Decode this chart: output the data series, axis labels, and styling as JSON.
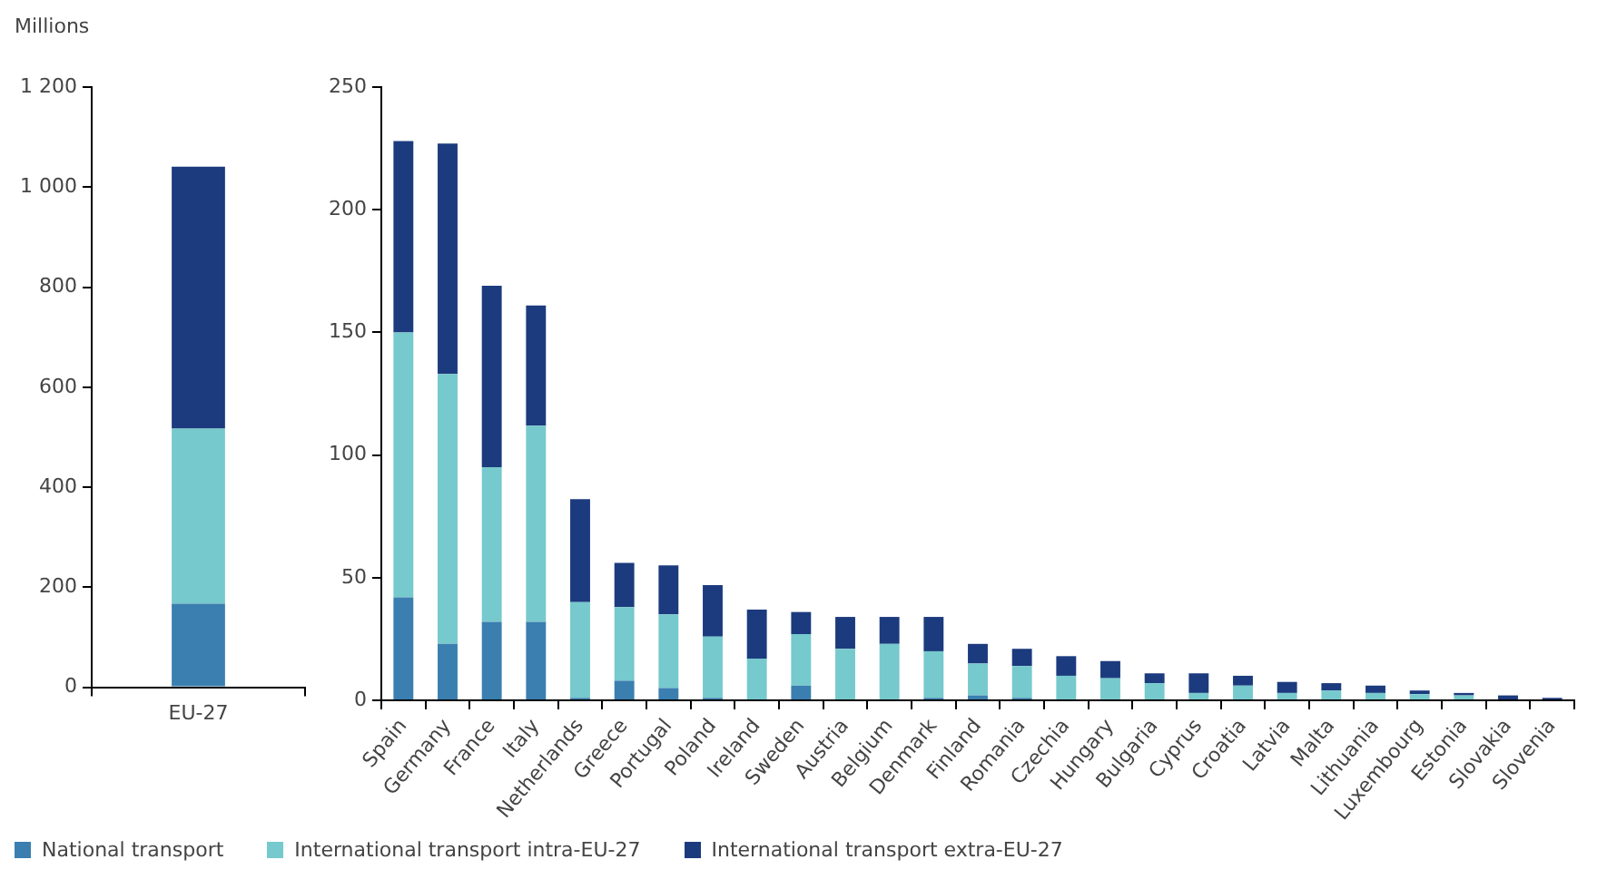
{
  "chart_data": [
    {
      "type": "bar",
      "stacked": true,
      "ylabel": "Millions",
      "categories": [
        "EU-27"
      ],
      "ylim": [
        0,
        1200
      ],
      "yticks": [
        0,
        200,
        400,
        600,
        800,
        {
          "value": 1000,
          "label": "1 000"
        },
        {
          "value": 1200,
          "label": "1 200"
        }
      ],
      "grid": false,
      "legend": "bottom",
      "series": [
        {
          "name": "National transport",
          "color": "#3a7fb0",
          "values": [
            167
          ]
        },
        {
          "name": "International transport intra-EU-27",
          "color": "#76c9cc",
          "values": [
            350
          ]
        },
        {
          "name": "International transport extra-EU-27",
          "color": "#1c3b7e",
          "values": [
            524
          ]
        }
      ]
    },
    {
      "type": "bar",
      "stacked": true,
      "categories": [
        "Spain",
        "Germany",
        "France",
        "Italy",
        "Netherlands",
        "Greece",
        "Portugal",
        "Poland",
        "Ireland",
        "Sweden",
        "Austria",
        "Belgium",
        "Denmark",
        "Finland",
        "Romania",
        "Czechia",
        "Hungary",
        "Bulgaria",
        "Cyprus",
        "Croatia",
        "Latvia",
        "Malta",
        "Lithuania",
        "Luxembourg",
        "Estonia",
        "Slovakia",
        "Slovenia"
      ],
      "ylim": [
        0,
        250
      ],
      "yticks": [
        0,
        50,
        100,
        150,
        200,
        250
      ],
      "grid": false,
      "legend": "bottom",
      "series": [
        {
          "name": "National transport",
          "color": "#3a7fb0",
          "values": [
            42,
            23,
            32,
            32,
            1,
            8,
            5,
            1,
            0,
            6,
            0,
            0,
            1,
            2,
            1,
            0,
            0,
            0,
            0,
            0,
            0,
            0,
            0,
            0,
            0,
            0,
            0
          ]
        },
        {
          "name": "International transport intra-EU-27",
          "color": "#76c9cc",
          "values": [
            108,
            110,
            63,
            80,
            39,
            30,
            30,
            25,
            17,
            21,
            21,
            23,
            19,
            13,
            13,
            10,
            9,
            7,
            3,
            6,
            3,
            4,
            3,
            2.5,
            2,
            0,
            0
          ]
        },
        {
          "name": "International transport extra-EU-27",
          "color": "#1c3b7e",
          "values": [
            78,
            94,
            74,
            49,
            42,
            18,
            20,
            21,
            20,
            9,
            13,
            11,
            14,
            8,
            7,
            8,
            7,
            4,
            8,
            4,
            4.5,
            3,
            3,
            1.5,
            1,
            2,
            1
          ]
        }
      ]
    }
  ]
}
